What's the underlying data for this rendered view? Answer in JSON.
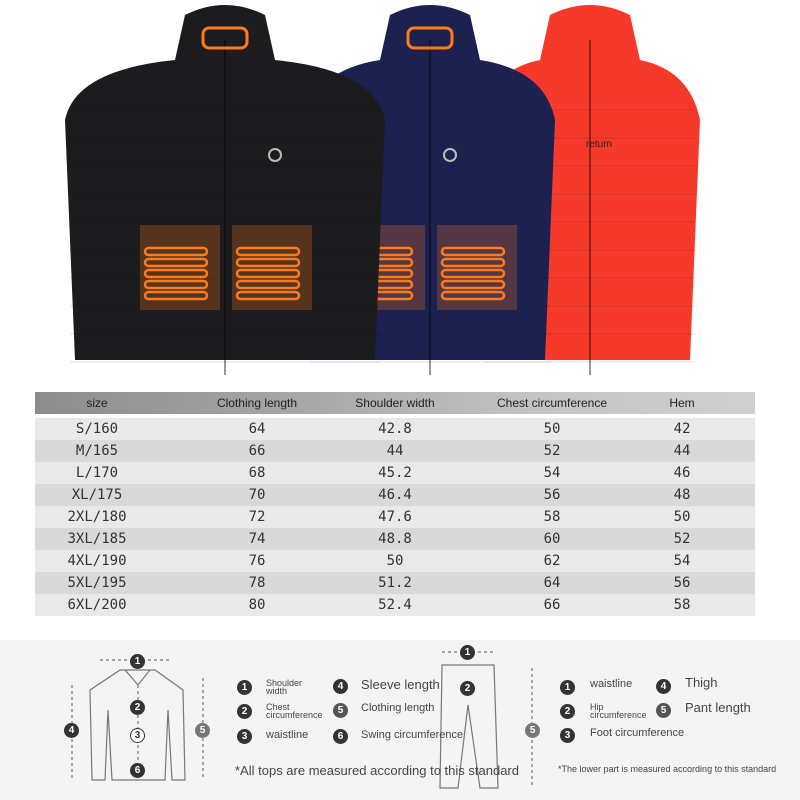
{
  "jackets": [
    {
      "color": "#1c1c1e",
      "label": "black-jacket"
    },
    {
      "color": "#1d2150",
      "label": "navy-jacket"
    },
    {
      "color": "#f5392b",
      "label": "red-jacket"
    }
  ],
  "heating_color": "#ff7a1a",
  "overlay_text": "return",
  "size_table": {
    "headers": [
      "size",
      "Clothing length",
      "Shoulder width",
      "Chest circumference",
      "Hem"
    ],
    "rows": [
      [
        "S/160",
        "64",
        "42.8",
        "50",
        "42"
      ],
      [
        "M/165",
        "66",
        "44",
        "52",
        "44"
      ],
      [
        "L/170",
        "68",
        "45.2",
        "54",
        "46"
      ],
      [
        "XL/175",
        "70",
        "46.4",
        "56",
        "48"
      ],
      [
        "2XL/180",
        "72",
        "47.6",
        "58",
        "50"
      ],
      [
        "3XL/185",
        "74",
        "48.8",
        "60",
        "52"
      ],
      [
        "4XL/190",
        "76",
        "50",
        "62",
        "54"
      ],
      [
        "5XL/195",
        "78",
        "51.2",
        "64",
        "56"
      ],
      [
        "6XL/200",
        "80",
        "52.4",
        "66",
        "58"
      ]
    ]
  },
  "guide": {
    "tops": {
      "items": [
        "Shoulder width",
        "Chest circumference",
        "waistline",
        "Sleeve length",
        "Clothing length",
        "Swing circumference"
      ],
      "note": "*All tops are measured according to this standard"
    },
    "bottoms": {
      "items": [
        "waistline",
        "Hip circumference",
        "Foot circumference",
        "Thigh",
        "Pant length"
      ],
      "note": "*The lower part is measured according to this standard"
    },
    "numbers": [
      "1",
      "2",
      "3",
      "4",
      "5",
      "6"
    ]
  }
}
